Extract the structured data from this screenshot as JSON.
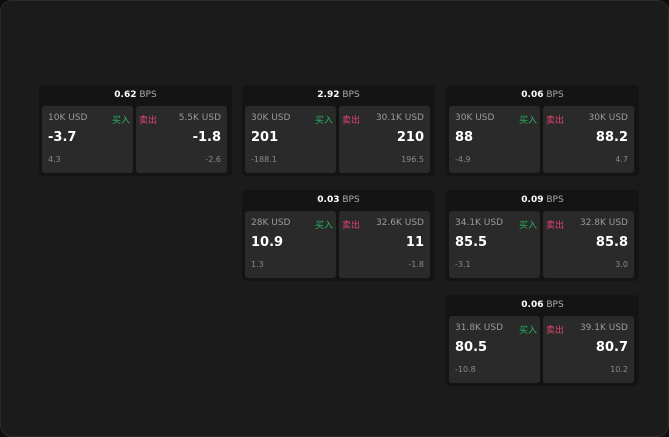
{
  "labels": {
    "buy": "买入",
    "sell": "卖出",
    "bps": "BPS"
  },
  "colors": {
    "buy": "#27b562",
    "sell": "#e0446e"
  },
  "cards": [
    {
      "bps": "0.62",
      "bid_amt": "10K USD",
      "bid": "-3.7",
      "bid_sub": "4.3",
      "ask_amt": "5.5K USD",
      "ask": "-1.8",
      "ask_sub": "-2.6"
    },
    {
      "bps": "2.92",
      "bid_amt": "30K USD",
      "bid": "201",
      "bid_sub": "-188.1",
      "ask_amt": "30.1K USD",
      "ask": "210",
      "ask_sub": "196.5"
    },
    {
      "bps": "0.06",
      "bid_amt": "30K USD",
      "bid": "88",
      "bid_sub": "-4.9",
      "ask_amt": "30K USD",
      "ask": "88.2",
      "ask_sub": "4.7"
    },
    {
      "bps": "0.03",
      "bid_amt": "28K USD",
      "bid": "10.9",
      "bid_sub": "1.3",
      "ask_amt": "32.6K USD",
      "ask": "11",
      "ask_sub": "-1.8"
    },
    {
      "bps": "0.09",
      "bid_amt": "34.1K USD",
      "bid": "85.5",
      "bid_sub": "-3.1",
      "ask_amt": "32.8K USD",
      "ask": "85.8",
      "ask_sub": "3.0"
    },
    {
      "bps": "0.06",
      "bid_amt": "31.8K USD",
      "bid": "80.5",
      "bid_sub": "-10.8",
      "ask_amt": "39.1K USD",
      "ask": "80.7",
      "ask_sub": "10.2"
    }
  ]
}
